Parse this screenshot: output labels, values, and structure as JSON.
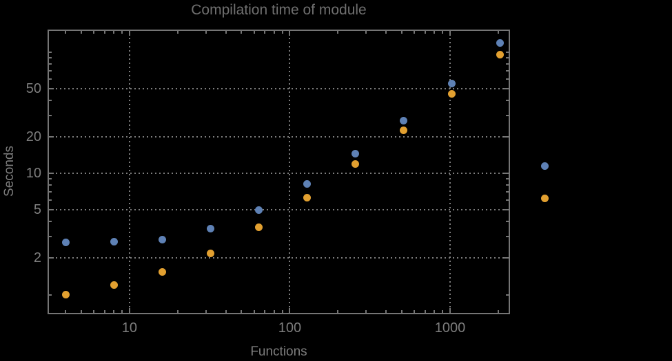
{
  "chart_data": {
    "type": "scatter",
    "title": "Compilation time of module",
    "xlabel": "Functions",
    "ylabel": "Seconds",
    "x_scale": "log",
    "y_scale": "log",
    "x_range": [
      3.08,
      2367
    ],
    "y_range": [
      0.69,
      153
    ],
    "x": [
      4,
      8,
      16,
      32,
      64,
      128,
      256,
      512,
      1024,
      2048
    ],
    "series": [
      {
        "name": "series-1-blue",
        "color": "#5E81B5",
        "values": [
          2.7,
          2.75,
          2.85,
          3.5,
          5.0,
          8.2,
          14.5,
          27,
          55,
          118
        ]
      },
      {
        "name": "series-2-orange",
        "color": "#E2A030",
        "values": [
          1.0,
          1.2,
          1.53,
          2.2,
          3.6,
          6.3,
          12,
          22.5,
          45,
          95
        ]
      }
    ],
    "x_axis": {
      "major_ticks": [
        {
          "value": 10,
          "label": "10"
        },
        {
          "value": 100,
          "label": "100"
        },
        {
          "value": 1000,
          "label": "1000"
        }
      ],
      "minor_ticks": [
        4,
        5,
        6,
        7,
        8,
        9,
        20,
        30,
        40,
        50,
        60,
        70,
        80,
        90,
        200,
        300,
        400,
        500,
        600,
        700,
        800,
        900,
        2000
      ]
    },
    "y_axis": {
      "major_ticks": [
        {
          "value": 2,
          "label": "2"
        },
        {
          "value": 5,
          "label": "5"
        },
        {
          "value": 10,
          "label": "10"
        },
        {
          "value": 20,
          "label": "20"
        },
        {
          "value": 50,
          "label": "50"
        }
      ],
      "minor_ticks": [
        1,
        3,
        4,
        6,
        7,
        8,
        9,
        30,
        40,
        60,
        70,
        80,
        90,
        100
      ]
    },
    "grid": {
      "x_values": [
        10,
        100,
        1000
      ],
      "y_values": [
        2,
        5,
        10,
        20,
        50
      ],
      "style": "dotted",
      "color": "#7d7d7d"
    },
    "legend": {
      "labels_visible": false,
      "markers": [
        {
          "color": "#5E81B5"
        },
        {
          "color": "#E2A030"
        }
      ]
    },
    "colors": {
      "background": "#000000",
      "frame": "#757575",
      "text": "#7d7d7d",
      "title": "#6f6f6f"
    }
  }
}
